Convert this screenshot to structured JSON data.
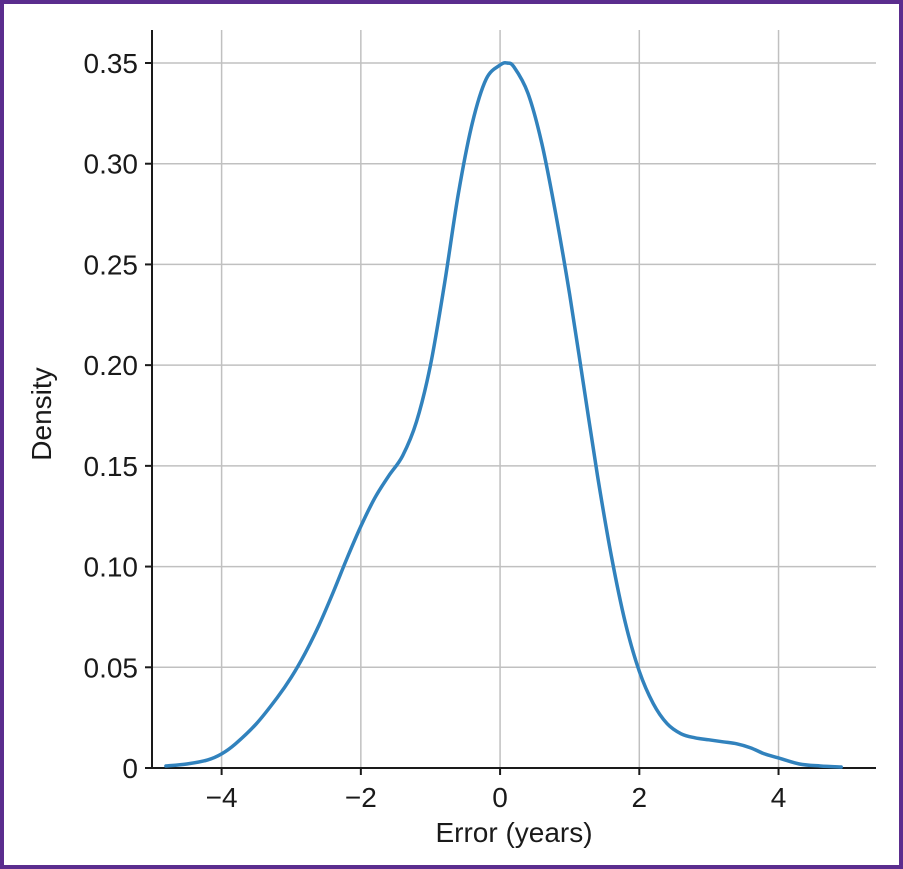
{
  "colors": {
    "border": "#5b2d8e",
    "line": "#3182bd",
    "grid": "#c0c0c0",
    "axis": "#1a1a1a"
  },
  "chart_data": {
    "type": "line",
    "title": "",
    "xlabel": "Error (years)",
    "ylabel": "Density",
    "xlim": [
      -5.0,
      5.4
    ],
    "ylim": [
      0,
      0.35
    ],
    "grid": true,
    "legend": "none",
    "x_ticks": [
      -4,
      -2,
      0,
      2,
      4
    ],
    "x_tick_labels": [
      "−4",
      "−2",
      "0",
      "2",
      "4"
    ],
    "y_ticks": [
      0,
      0.05,
      0.1,
      0.15,
      0.2,
      0.25,
      0.3,
      0.35
    ],
    "y_tick_labels": [
      "0",
      "0.05",
      "0.10",
      "0.15",
      "0.20",
      "0.25",
      "0.30",
      "0.35"
    ],
    "series": [
      {
        "x": [
          -4.8,
          -4.5,
          -4.2,
          -4.0,
          -3.8,
          -3.5,
          -3.2,
          -3.0,
          -2.8,
          -2.6,
          -2.4,
          -2.2,
          -2.0,
          -1.8,
          -1.6,
          -1.4,
          -1.2,
          -1.0,
          -0.8,
          -0.6,
          -0.4,
          -0.2,
          0.0,
          0.1,
          0.2,
          0.4,
          0.6,
          0.8,
          1.0,
          1.2,
          1.4,
          1.6,
          1.8,
          2.0,
          2.2,
          2.4,
          2.6,
          2.8,
          3.0,
          3.2,
          3.4,
          3.6,
          3.8,
          4.0,
          4.3,
          4.6,
          4.9
        ],
        "y": [
          0.001,
          0.002,
          0.004,
          0.007,
          0.012,
          0.022,
          0.035,
          0.045,
          0.057,
          0.071,
          0.087,
          0.104,
          0.12,
          0.134,
          0.145,
          0.155,
          0.172,
          0.2,
          0.24,
          0.285,
          0.32,
          0.342,
          0.349,
          0.35,
          0.348,
          0.335,
          0.31,
          0.275,
          0.235,
          0.19,
          0.145,
          0.105,
          0.072,
          0.048,
          0.032,
          0.022,
          0.017,
          0.015,
          0.014,
          0.013,
          0.012,
          0.01,
          0.007,
          0.005,
          0.002,
          0.001,
          0.0005
        ]
      }
    ]
  }
}
